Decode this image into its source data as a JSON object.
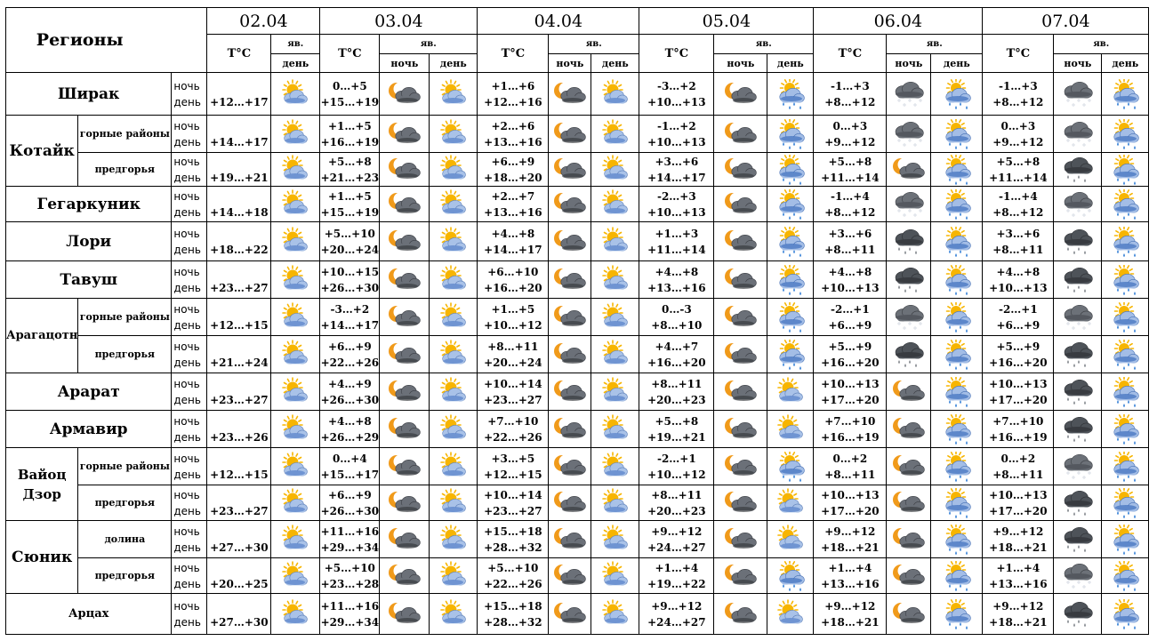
{
  "header": {
    "regions_label": "Регионы",
    "temp_label": "T°C",
    "yav_label": "яв.",
    "night_label": "ночь",
    "day_label": "день"
  },
  "dates": [
    "02.04",
    "03.04",
    "04.04",
    "05.04",
    "06.04",
    "07.04"
  ],
  "tod": {
    "night": "ночь",
    "day": "день"
  },
  "rows": [
    {
      "region": "Ширак",
      "sub": "",
      "group": "Ширак",
      "temps": [
        [
          "",
          "+12…+17"
        ],
        [
          "0…+5",
          "+15…+19"
        ],
        [
          "+1…+6",
          "+12…+16"
        ],
        [
          "-3…+2",
          "+10…+13"
        ],
        [
          "-1…+3",
          "+8…+12"
        ],
        [
          "-1…+3",
          "+8…+12"
        ]
      ],
      "icons": [
        [
          "partly-cloudy-sun-icon"
        ],
        [
          "moon-cloud-icon",
          "partly-cloudy-sun-icon"
        ],
        [
          "moon-cloud-icon",
          "partly-cloudy-sun-icon"
        ],
        [
          "moon-cloud-icon",
          "sun-rain-icon"
        ],
        [
          "snow-cloud-icon",
          "sun-rain-icon"
        ],
        [
          "snow-cloud-icon",
          "sun-rain-icon"
        ]
      ]
    },
    {
      "region": "Котайк",
      "sub": "горные районы",
      "temps": [
        [
          "",
          "+14…+17"
        ],
        [
          "+1…+5",
          "+16…+19"
        ],
        [
          "+2…+6",
          "+13…+16"
        ],
        [
          "-1…+2",
          "+10…+13"
        ],
        [
          "0…+3",
          "+9…+12"
        ],
        [
          "0…+3",
          "+9…+12"
        ]
      ],
      "icons": [
        [
          "partly-cloudy-sun-icon"
        ],
        [
          "moon-cloud-icon",
          "partly-cloudy-sun-icon"
        ],
        [
          "moon-cloud-icon",
          "partly-cloudy-sun-icon"
        ],
        [
          "moon-cloud-icon",
          "sun-rain-icon"
        ],
        [
          "snow-cloud-icon",
          "sun-rain-icon"
        ],
        [
          "snow-cloud-icon",
          "sun-rain-icon"
        ]
      ]
    },
    {
      "region": "",
      "sub": "предгорья",
      "temps": [
        [
          "",
          "+19…+21"
        ],
        [
          "+5…+8",
          "+21…+23"
        ],
        [
          "+6…+9",
          "+18…+20"
        ],
        [
          "+3…+6",
          "+14…+17"
        ],
        [
          "+5…+8",
          "+11…+14"
        ],
        [
          "+5…+8",
          "+11…+14"
        ]
      ],
      "icons": [
        [
          "partly-cloudy-sun-icon"
        ],
        [
          "moon-cloud-icon",
          "partly-cloudy-sun-icon"
        ],
        [
          "moon-cloud-icon",
          "partly-cloudy-sun-icon"
        ],
        [
          "moon-cloud-icon",
          "sun-rain-icon"
        ],
        [
          "moon-cloud-icon",
          "sun-rain-icon"
        ],
        [
          "rain-cloud-icon",
          "sun-rain-icon"
        ]
      ]
    },
    {
      "region": "Гегаркуник",
      "sub": "",
      "temps": [
        [
          "",
          "+14…+18"
        ],
        [
          "+1…+5",
          "+15…+19"
        ],
        [
          "+2…+7",
          "+13…+16"
        ],
        [
          "-2…+3",
          "+10…+13"
        ],
        [
          "-1…+4",
          "+8…+12"
        ],
        [
          "-1…+4",
          "+8…+12"
        ]
      ],
      "icons": [
        [
          "partly-cloudy-sun-icon"
        ],
        [
          "moon-cloud-icon",
          "partly-cloudy-sun-icon"
        ],
        [
          "moon-cloud-icon",
          "partly-cloudy-sun-icon"
        ],
        [
          "moon-cloud-icon",
          "sun-rain-icon"
        ],
        [
          "snow-cloud-icon",
          "sun-rain-icon"
        ],
        [
          "snow-cloud-icon",
          "sun-rain-icon"
        ]
      ]
    },
    {
      "region": "Лори",
      "sub": "",
      "temps": [
        [
          "",
          "+18…+22"
        ],
        [
          "+5…+10",
          "+20…+24"
        ],
        [
          "+4…+8",
          "+14…+17"
        ],
        [
          "+1…+3",
          "+11…+14"
        ],
        [
          "+3…+6",
          "+8…+11"
        ],
        [
          "+3…+6",
          "+8…+11"
        ]
      ],
      "icons": [
        [
          "partly-cloudy-sun-icon"
        ],
        [
          "moon-cloud-icon",
          "partly-cloudy-sun-icon"
        ],
        [
          "moon-cloud-icon",
          "partly-cloudy-sun-icon"
        ],
        [
          "moon-cloud-icon",
          "sun-rain-icon"
        ],
        [
          "rain-cloud-icon",
          "sun-rain-icon"
        ],
        [
          "rain-cloud-icon",
          "sun-rain-icon"
        ]
      ]
    },
    {
      "region": "Тавуш",
      "sub": "",
      "temps": [
        [
          "",
          "+23…+27"
        ],
        [
          "+10…+15",
          "+26…+30"
        ],
        [
          "+6…+10",
          "+16…+20"
        ],
        [
          "+4…+8",
          "+13…+16"
        ],
        [
          "+4…+8",
          "+10…+13"
        ],
        [
          "+4…+8",
          "+10…+13"
        ]
      ],
      "icons": [
        [
          "partly-cloudy-sun-icon"
        ],
        [
          "moon-cloud-icon",
          "partly-cloudy-sun-icon"
        ],
        [
          "moon-cloud-icon",
          "partly-cloudy-sun-icon"
        ],
        [
          "moon-cloud-icon",
          "sun-rain-icon"
        ],
        [
          "rain-cloud-icon",
          "sun-rain-icon"
        ],
        [
          "rain-cloud-icon",
          "sun-rain-icon"
        ]
      ]
    },
    {
      "region": "Арагацотн",
      "sub": "горные районы",
      "temps": [
        [
          "",
          "+12…+15"
        ],
        [
          "-3…+2",
          "+14…+17"
        ],
        [
          "+1…+5",
          "+10…+12"
        ],
        [
          "0…-3",
          "+8…+10"
        ],
        [
          "-2…+1",
          "+6…+9"
        ],
        [
          "-2…+1",
          "+6…+9"
        ]
      ],
      "icons": [
        [
          "partly-cloudy-sun-icon"
        ],
        [
          "moon-cloud-icon",
          "partly-cloudy-sun-icon"
        ],
        [
          "moon-cloud-icon",
          "partly-cloudy-sun-icon"
        ],
        [
          "moon-cloud-icon",
          "sun-rain-icon"
        ],
        [
          "snow-cloud-icon",
          "sun-rain-icon"
        ],
        [
          "snow-cloud-icon",
          "sun-rain-icon"
        ]
      ]
    },
    {
      "region": "",
      "sub": "предгорья",
      "temps": [
        [
          "",
          "+21…+24"
        ],
        [
          "+6…+9",
          "+22…+26"
        ],
        [
          "+8…+11",
          "+20…+24"
        ],
        [
          "+4…+7",
          "+16…+20"
        ],
        [
          "+5…+9",
          "+16…+20"
        ],
        [
          "+5…+9",
          "+16…+20"
        ]
      ],
      "icons": [
        [
          "partly-cloudy-sun-icon"
        ],
        [
          "moon-cloud-icon",
          "partly-cloudy-sun-icon"
        ],
        [
          "moon-cloud-icon",
          "partly-cloudy-sun-icon"
        ],
        [
          "moon-cloud-icon",
          "sun-rain-icon"
        ],
        [
          "rain-cloud-icon",
          "sun-rain-icon"
        ],
        [
          "rain-cloud-icon",
          "sun-rain-icon"
        ]
      ]
    },
    {
      "region": "Арарат",
      "sub": "",
      "temps": [
        [
          "",
          "+23…+27"
        ],
        [
          "+4…+9",
          "+26…+30"
        ],
        [
          "+10…+14",
          "+23…+27"
        ],
        [
          "+8…+11",
          "+20…+23"
        ],
        [
          "+10…+13",
          "+17…+20"
        ],
        [
          "+10…+13",
          "+17…+20"
        ]
      ],
      "icons": [
        [
          "partly-cloudy-sun-icon"
        ],
        [
          "moon-cloud-icon",
          "partly-cloudy-sun-icon"
        ],
        [
          "moon-cloud-icon",
          "partly-cloudy-sun-icon"
        ],
        [
          "moon-cloud-icon",
          "partly-cloudy-sun-icon"
        ],
        [
          "moon-cloud-icon",
          "sun-rain-icon"
        ],
        [
          "rain-cloud-icon",
          "sun-rain-icon"
        ]
      ]
    },
    {
      "region": "Армавир",
      "sub": "",
      "temps": [
        [
          "",
          "+23…+26"
        ],
        [
          "+4…+8",
          "+26…+29"
        ],
        [
          "+7…+10",
          "+22…+26"
        ],
        [
          "+5…+8",
          "+19…+21"
        ],
        [
          "+7…+10",
          "+16…+19"
        ],
        [
          "+7…+10",
          "+16…+19"
        ]
      ],
      "icons": [
        [
          "partly-cloudy-sun-icon"
        ],
        [
          "moon-cloud-icon",
          "partly-cloudy-sun-icon"
        ],
        [
          "moon-cloud-icon",
          "partly-cloudy-sun-icon"
        ],
        [
          "moon-cloud-icon",
          "partly-cloudy-sun-icon"
        ],
        [
          "moon-cloud-icon",
          "sun-rain-icon"
        ],
        [
          "rain-cloud-icon",
          "sun-rain-icon"
        ]
      ]
    },
    {
      "region": "Вайоц Дзор",
      "sub": "горные районы",
      "temps": [
        [
          "",
          "+12…+15"
        ],
        [
          "0…+4",
          "+15…+17"
        ],
        [
          "+3…+5",
          "+12…+15"
        ],
        [
          "-2…+1",
          "+10…+12"
        ],
        [
          "0…+2",
          "+8…+11"
        ],
        [
          "0…+2",
          "+8…+11"
        ]
      ],
      "icons": [
        [
          "partly-cloudy-sun-icon"
        ],
        [
          "moon-cloud-icon",
          "partly-cloudy-sun-icon"
        ],
        [
          "moon-cloud-icon",
          "partly-cloudy-sun-icon"
        ],
        [
          "moon-cloud-icon",
          "sun-rain-icon"
        ],
        [
          "moon-cloud-icon",
          "sun-rain-icon"
        ],
        [
          "snow-cloud-icon",
          "sun-rain-icon"
        ]
      ]
    },
    {
      "region": "",
      "sub": "предгорья",
      "temps": [
        [
          "",
          "+23…+27"
        ],
        [
          "+6…+9",
          "+26…+30"
        ],
        [
          "+10…+14",
          "+23…+27"
        ],
        [
          "+8…+11",
          "+20…+23"
        ],
        [
          "+10…+13",
          "+17…+20"
        ],
        [
          "+10…+13",
          "+17…+20"
        ]
      ],
      "icons": [
        [
          "partly-cloudy-sun-icon"
        ],
        [
          "moon-cloud-icon",
          "partly-cloudy-sun-icon"
        ],
        [
          "moon-cloud-icon",
          "partly-cloudy-sun-icon"
        ],
        [
          "moon-cloud-icon",
          "partly-cloudy-sun-icon"
        ],
        [
          "moon-cloud-icon",
          "sun-rain-icon"
        ],
        [
          "rain-cloud-icon",
          "sun-rain-icon"
        ]
      ]
    },
    {
      "region": "Сюник",
      "sub": "долина",
      "temps": [
        [
          "",
          "+27…+30"
        ],
        [
          "+11…+16",
          "+29…+34"
        ],
        [
          "+15…+18",
          "+28…+32"
        ],
        [
          "+9…+12",
          "+24…+27"
        ],
        [
          "+9…+12",
          "+18…+21"
        ],
        [
          "+9…+12",
          "+18…+21"
        ]
      ],
      "icons": [
        [
          "partly-cloudy-sun-icon"
        ],
        [
          "moon-cloud-icon",
          "partly-cloudy-sun-icon"
        ],
        [
          "moon-cloud-icon",
          "partly-cloudy-sun-icon"
        ],
        [
          "moon-cloud-icon",
          "partly-cloudy-sun-icon"
        ],
        [
          "moon-cloud-icon",
          "sun-rain-icon"
        ],
        [
          "rain-cloud-icon",
          "sun-rain-icon"
        ]
      ]
    },
    {
      "region": "",
      "sub": "предгорья",
      "temps": [
        [
          "",
          "+20…+25"
        ],
        [
          "+5…+10",
          "+23…+28"
        ],
        [
          "+5…+10",
          "+22…+26"
        ],
        [
          "+1…+4",
          "+19…+22"
        ],
        [
          "+1…+4",
          "+13…+16"
        ],
        [
          "+1…+4",
          "+13…+16"
        ]
      ],
      "icons": [
        [
          "partly-cloudy-sun-icon"
        ],
        [
          "moon-cloud-icon",
          "partly-cloudy-sun-icon"
        ],
        [
          "moon-cloud-icon",
          "partly-cloudy-sun-icon"
        ],
        [
          "moon-cloud-icon",
          "sun-rain-icon"
        ],
        [
          "moon-cloud-icon",
          "sun-rain-icon"
        ],
        [
          "snow-cloud-icon",
          "sun-rain-icon"
        ]
      ]
    },
    {
      "region": "Арцах",
      "sub": "",
      "temps": [
        [
          "",
          "+27…+30"
        ],
        [
          "+11…+16",
          "+29…+34"
        ],
        [
          "+15…+18",
          "+28…+32"
        ],
        [
          "+9…+12",
          "+24…+27"
        ],
        [
          "+9…+12",
          "+18…+21"
        ],
        [
          "+9…+12",
          "+18…+21"
        ]
      ],
      "icons": [
        [
          "partly-cloudy-sun-icon"
        ],
        [
          "moon-cloud-icon",
          "partly-cloudy-sun-icon"
        ],
        [
          "moon-cloud-icon",
          "partly-cloudy-sun-icon"
        ],
        [
          "moon-cloud-icon",
          "partly-cloudy-sun-icon"
        ],
        [
          "moon-cloud-icon",
          "sun-rain-icon"
        ],
        [
          "rain-cloud-icon",
          "sun-rain-icon"
        ]
      ]
    }
  ],
  "colors": {
    "sun": "#f7b500",
    "moon": "#f09a1a",
    "cloud_dark": "#555a60",
    "cloud_light": "#9fb4d8",
    "rain": "#1a6fd1"
  }
}
